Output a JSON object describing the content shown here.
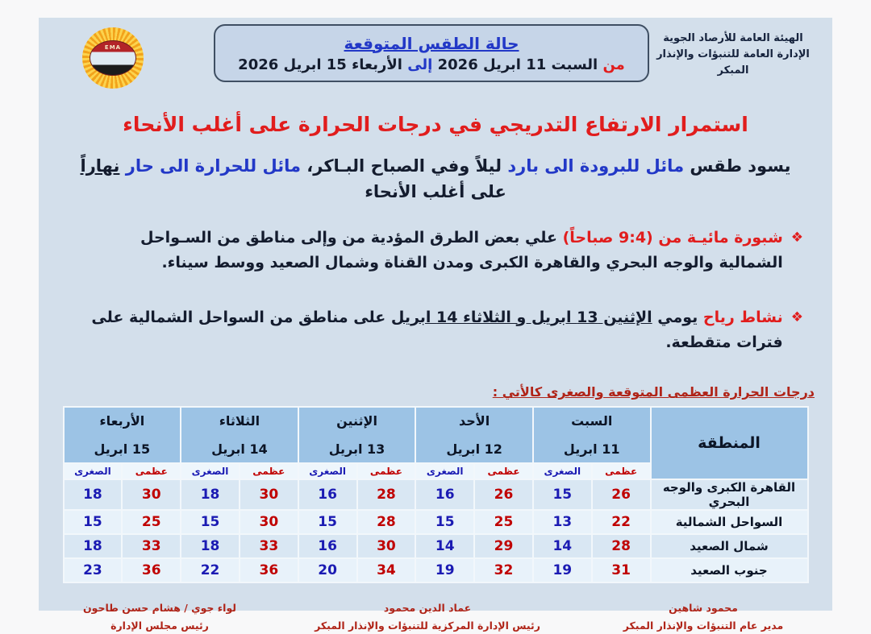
{
  "header": {
    "org_line1": "الهيئة العامة للأرصاد الجوية",
    "org_line2": "الإدارة العامة للتنبؤات والإنذار المبكر",
    "title": "حالة الطقس المتوقعة",
    "date_from_label": "من",
    "date_from": "السبت 11 ابريل 2026",
    "date_to_label": "إلى",
    "date_to": "الأربعاء 15 ابريل 2026",
    "logo_text": "EMA"
  },
  "headline": "استمرار الارتفاع  التدريجي في درجات الحرارة على أغلب الأنحاء",
  "summary": {
    "part1": "يسود طقس ",
    "part2_blue": "مائل للبرودة الى بارد",
    "part3": " ليلاً وفي الصباح البـاكر، ",
    "part4_blue": "مائل للحرارة الى حار",
    "part5_space": " ",
    "part6_underlined": "نهاراً",
    "line2": "على أغلب الأنحاء"
  },
  "bullets": {
    "marker": "❖",
    "item1_red": "شبورة مائيـة من (9:4 صباحاً)",
    "item1_rest": " علي بعض الطرق المؤدية من وإلى مناطق من السـواحل الشمالية والوجه البحري والقاهرة الكبرى ومدن القناة وشمال الصعيد ووسط سيناء.",
    "item2_red": "نشاط رياح",
    "item2_plain": " يومي ",
    "item2_underlined": "الإثنين 13 ابريل و الثلاثاء 14 ابريل",
    "item2_rest": " على مناطق من السواحل الشمالية على فترات متقطعة."
  },
  "table": {
    "caption": "درجات الحرارة العظمى المتوقعة والصغرى كالأتي :",
    "region_header": "المنطقة",
    "max_label": "عظمى",
    "min_label": "الصغرى",
    "days": [
      {
        "name": "السبت",
        "date": "11 ابريل"
      },
      {
        "name": "الأحد",
        "date": "12 ابريل"
      },
      {
        "name": "الإثنين",
        "date": "13 ابريل"
      },
      {
        "name": "الثلاثاء",
        "date": "14 ابريل"
      },
      {
        "name": "الأربعاء",
        "date": "15 ابريل"
      }
    ],
    "rows": [
      {
        "region": "القاهرة الكبرى والوجه البحري",
        "temps": [
          [
            26,
            15
          ],
          [
            26,
            16
          ],
          [
            28,
            16
          ],
          [
            30,
            18
          ],
          [
            30,
            18
          ]
        ]
      },
      {
        "region": "السواحل الشمالية",
        "temps": [
          [
            22,
            13
          ],
          [
            25,
            15
          ],
          [
            28,
            15
          ],
          [
            30,
            15
          ],
          [
            25,
            15
          ]
        ]
      },
      {
        "region": "شمال الصعيد",
        "temps": [
          [
            28,
            14
          ],
          [
            29,
            14
          ],
          [
            30,
            16
          ],
          [
            33,
            18
          ],
          [
            33,
            18
          ]
        ]
      },
      {
        "region": "جنوب الصعيد",
        "temps": [
          [
            31,
            19
          ],
          [
            32,
            19
          ],
          [
            34,
            20
          ],
          [
            36,
            22
          ],
          [
            36,
            23
          ]
        ]
      }
    ]
  },
  "signatures": [
    {
      "name": "محمود شاهين",
      "title": "مدير عام التنبؤات والإنذار المبكر"
    },
    {
      "name": "عماد الدين محمود",
      "title": "رئيس الإدارة المركزية للتنبؤات والإنذار المبكر"
    },
    {
      "name": "لواء جوي / هشام حسن طاحون",
      "title": "رئيس مجلس الإدارة"
    }
  ],
  "colors": {
    "page_bg": "#d3dfeb",
    "headline_red": "#e11d1d",
    "body_navy": "#141c2e",
    "emphasis_blue": "#2238c7",
    "dark_red": "#b02418",
    "max_red": "#c00000",
    "min_blue": "#1b1bb3",
    "table_header_bg": "#9cc3e5"
  }
}
